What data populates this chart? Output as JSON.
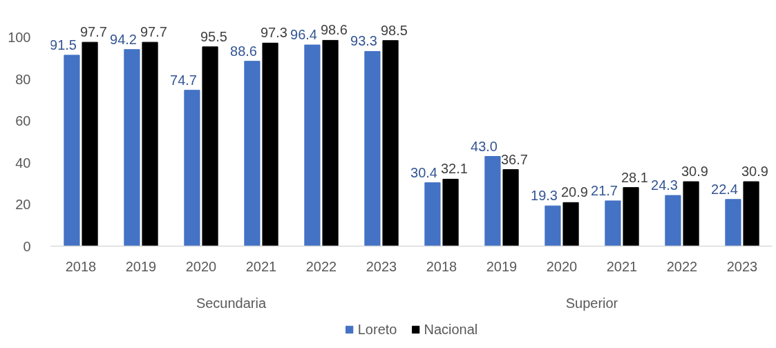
{
  "chart_data": {
    "type": "bar",
    "categories": [
      "2018",
      "2019",
      "2020",
      "2021",
      "2022",
      "2023",
      "2018",
      "2019",
      "2020",
      "2021",
      "2022",
      "2023"
    ],
    "annotations": [
      "Secundaria",
      "Superior"
    ],
    "series": [
      {
        "name": "Loreto",
        "color": "#4472c4",
        "values": [
          91.5,
          94.2,
          74.7,
          88.6,
          96.4,
          93.3,
          30.4,
          43.0,
          19.3,
          21.7,
          24.3,
          22.4
        ],
        "value_labels": [
          "91.5",
          "94.2",
          "74.7",
          "88.6",
          "96.4",
          "93.3",
          "30.4",
          "43.0",
          "19.3",
          "21.7",
          "24.3",
          "22.4"
        ]
      },
      {
        "name": "Nacional",
        "color": "#000000",
        "values": [
          97.7,
          97.7,
          95.5,
          97.3,
          98.6,
          98.5,
          32.1,
          36.7,
          20.9,
          28.1,
          30.9,
          30.9
        ],
        "value_labels": [
          "97.7",
          "97.7",
          "95.5",
          "97.3",
          "98.6",
          "98.5",
          "32.1",
          "36.7",
          "20.9",
          "28.1",
          "30.9",
          "30.9"
        ]
      }
    ],
    "ylim": [
      0,
      100
    ],
    "yticks": [
      0,
      20,
      40,
      60,
      80,
      100
    ],
    "grid": false,
    "legend": "bottom"
  }
}
